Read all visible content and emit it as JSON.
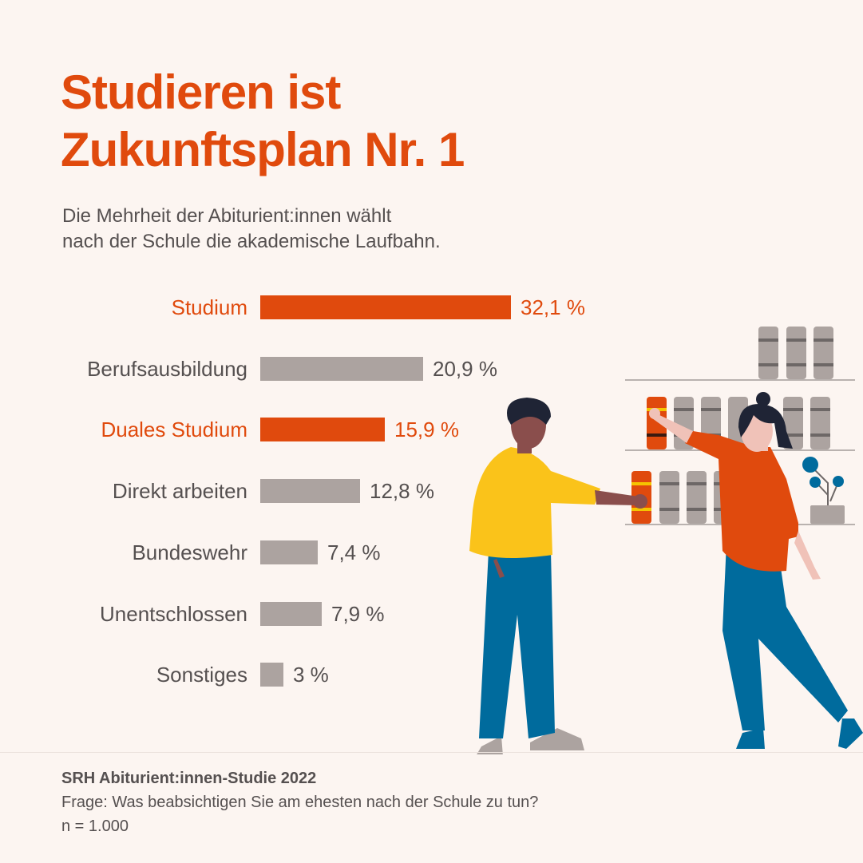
{
  "title_lines": [
    "Studieren ist",
    "Zukunftsplan Nr. 1"
  ],
  "subtitle_lines": [
    "Die Mehrheit der Abiturient:innen wählt",
    "nach der Schule die akademische Laufbahn."
  ],
  "colors": {
    "accent": "#e04a0d",
    "bar_neutral": "#aca3a0",
    "text": "#555050",
    "background": "#fcf5f1"
  },
  "chart_data": {
    "type": "bar",
    "orientation": "horizontal",
    "unit": "%",
    "categories": [
      "Studium",
      "Berufsausbildung",
      "Duales Studium",
      "Direkt arbeiten",
      "Bundeswehr",
      "Unentschlossen",
      "Sonstiges"
    ],
    "values": [
      32.1,
      20.9,
      15.9,
      12.8,
      7.4,
      7.9,
      3
    ],
    "value_labels": [
      "32,1 %",
      "20,9 %",
      "15,9 %",
      "12,8 %",
      "7,4 %",
      "7,9 %",
      "3 %"
    ],
    "highlighted": [
      true,
      false,
      true,
      false,
      false,
      false,
      false
    ],
    "xlim": [
      0,
      32.1
    ],
    "grid": false
  },
  "footer": {
    "source": "SRH Abiturient:innen-Studie 2022",
    "question": "Frage: Was beabsichtigen Sie am ehesten nach der Schule zu tun?",
    "sample": "n = 1.000"
  }
}
